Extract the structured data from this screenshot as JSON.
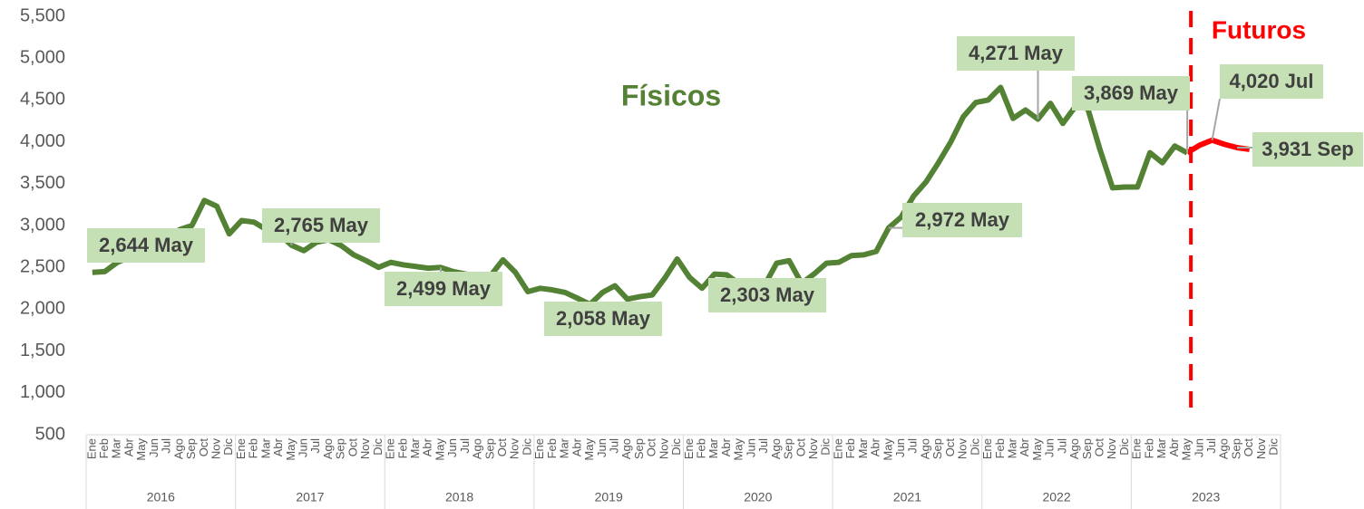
{
  "chart_data": {
    "type": "line",
    "categories": [
      "Ene",
      "Feb",
      "Mar",
      "Abr",
      "May",
      "Jun",
      "Jul",
      "Ago",
      "Sep",
      "Oct",
      "Nov",
      "Dic",
      "Ene",
      "Feb",
      "Mar",
      "Abr",
      "May",
      "Jun",
      "Jul",
      "Ago",
      "Sep",
      "Oct",
      "Nov",
      "Dic",
      "Ene",
      "Feb",
      "Mar",
      "Abr",
      "May",
      "Jun",
      "Jul",
      "Ago",
      "Sep",
      "Oct",
      "Nov",
      "Dic",
      "Ene",
      "Feb",
      "Mar",
      "Abr",
      "May",
      "Jun",
      "Jul",
      "Ago",
      "Sep",
      "Oct",
      "Nov",
      "Dic",
      "Ene",
      "Feb",
      "Mar",
      "Abr",
      "May",
      "Jun",
      "Jul",
      "Ago",
      "Sep",
      "Oct",
      "Nov",
      "Dic",
      "Ene",
      "Feb",
      "Mar",
      "Abr",
      "May",
      "Jun",
      "Jul",
      "Ago",
      "Sep",
      "Oct",
      "Nov",
      "Dic",
      "Ene",
      "Feb",
      "Mar",
      "Abr",
      "May",
      "Jun",
      "Jul",
      "Ago",
      "Sep",
      "Oct",
      "Nov",
      "Dic",
      "Ene",
      "Feb",
      "Mar",
      "Abr",
      "May",
      "Jun",
      "Jul",
      "Ago",
      "Sep",
      "Oct",
      "Nov",
      "Dic"
    ],
    "years": [
      "2016",
      "2017",
      "2018",
      "2019",
      "2020",
      "2021",
      "2022",
      "2023"
    ],
    "series": [
      {
        "name": "Físicos",
        "color": "#548235",
        "values": [
          2440,
          2450,
          2560,
          2620,
          2644,
          2700,
          2800,
          2950,
          3000,
          3300,
          3230,
          2900,
          3060,
          3040,
          2950,
          2900,
          2765,
          2700,
          2800,
          2830,
          2760,
          2650,
          2580,
          2500,
          2560,
          2530,
          2510,
          2490,
          2499,
          2450,
          2420,
          2400,
          2400,
          2590,
          2440,
          2210,
          2250,
          2230,
          2200,
          2130,
          2058,
          2200,
          2280,
          2120,
          2150,
          2170,
          2370,
          2600,
          2380,
          2250,
          2420,
          2410,
          2303,
          2270,
          2280,
          2550,
          2580,
          2310,
          2420,
          2550,
          2560,
          2640,
          2650,
          2690,
          2972,
          3100,
          3350,
          3520,
          3750,
          4000,
          4300,
          4470,
          4500,
          4650,
          4280,
          4380,
          4271,
          4460,
          4220,
          4420,
          4400,
          3900,
          3450,
          3460,
          3460,
          3870,
          3750,
          3950,
          3869,
          null,
          null,
          null,
          null,
          null,
          null,
          null
        ]
      },
      {
        "name": "Futuros",
        "color": "#ff0000",
        "values": [
          null,
          null,
          null,
          null,
          null,
          null,
          null,
          null,
          null,
          null,
          null,
          null,
          null,
          null,
          null,
          null,
          null,
          null,
          null,
          null,
          null,
          null,
          null,
          null,
          null,
          null,
          null,
          null,
          null,
          null,
          null,
          null,
          null,
          null,
          null,
          null,
          null,
          null,
          null,
          null,
          null,
          null,
          null,
          null,
          null,
          null,
          null,
          null,
          null,
          null,
          null,
          null,
          null,
          null,
          null,
          null,
          null,
          null,
          null,
          null,
          null,
          null,
          null,
          null,
          null,
          null,
          null,
          null,
          null,
          null,
          null,
          null,
          null,
          null,
          null,
          null,
          null,
          null,
          null,
          null,
          null,
          null,
          null,
          null,
          null,
          null,
          null,
          null,
          3869,
          3960,
          4020,
          3970,
          3931,
          3910,
          null,
          null
        ]
      }
    ],
    "annotations": [
      "2,644 May",
      "2,765 May",
      "2,499 May",
      "2,058 May",
      "2,303 May",
      "2,972 May",
      "4,271 May",
      "3,869 May",
      "4,020 Jul",
      "3,931 Sep"
    ],
    "annotation_color": "#c5e0b4",
    "ylim": [
      500,
      5500
    ],
    "yticks": [
      500,
      {
        "value": 1000,
        "label": "1,000"
      },
      {
        "value": 1500,
        "label": "1,500"
      },
      {
        "value": 2000,
        "label": "2,000"
      },
      {
        "value": 2500,
        "label": "2,500"
      },
      {
        "value": 3000,
        "label": "3,000"
      },
      {
        "value": 3500,
        "label": "3,500"
      },
      {
        "value": 4000,
        "label": "4,000"
      },
      {
        "value": 4500,
        "label": "4,500"
      },
      {
        "value": 5000,
        "label": "5,000"
      },
      {
        "value": 5500,
        "label": "5,500"
      }
    ],
    "grid": false
  }
}
